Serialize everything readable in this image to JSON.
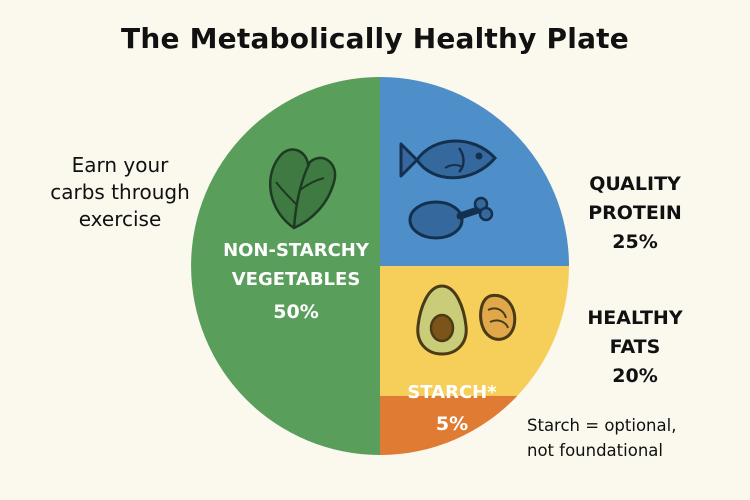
{
  "chart_data": {
    "type": "pie",
    "title": "The Metabolically Healthy Plate",
    "slices": [
      {
        "label_lines": [
          "NON-STARCHY",
          "VEGETABLES"
        ],
        "value": 50,
        "value_label": "50%",
        "color": "#5a9e5c"
      },
      {
        "label_lines": [
          "QUALITY",
          "PROTEIN"
        ],
        "value": 25,
        "value_label": "25%",
        "color": "#4f8fc9"
      },
      {
        "label_lines": [
          "HEALTHY",
          "FATS"
        ],
        "value": 20,
        "value_label": "20%",
        "color": "#f6cf5a"
      },
      {
        "label_lines": [
          "STARCH*"
        ],
        "value": 5,
        "value_label": "5%",
        "color": "#e07b33"
      }
    ],
    "annotations": {
      "left_note": [
        "Earn your",
        "carbs through",
        "exercise"
      ],
      "starch_note": [
        "Starch = optional,",
        "not foundational"
      ]
    }
  },
  "icons": {
    "vegetables": "leafy-greens-icon",
    "protein": [
      "fish-icon",
      "chicken-drumstick-icon"
    ],
    "fats": [
      "avocado-icon",
      "nut-icon"
    ]
  }
}
